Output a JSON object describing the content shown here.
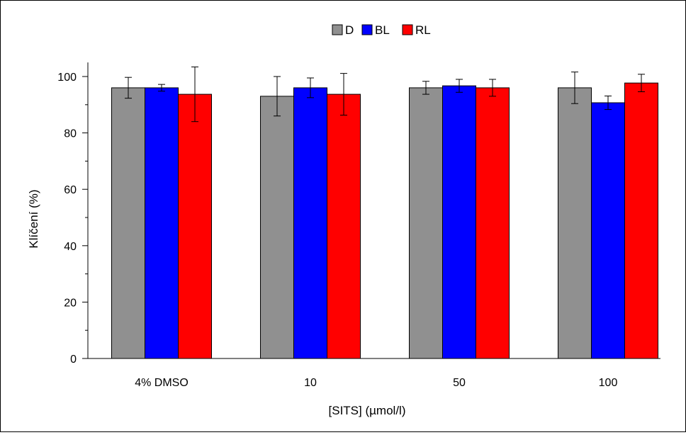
{
  "chart_data": {
    "type": "bar",
    "title": "",
    "xlabel": "[SITS] (µmol/l)",
    "ylabel": "Klíčení (%)",
    "ylim": [
      0,
      105
    ],
    "yticks": [
      0,
      20,
      40,
      60,
      80,
      100
    ],
    "categories": [
      "4% DMSO",
      "10",
      "50",
      "100"
    ],
    "legend_position": "top-center",
    "grid": false,
    "series": [
      {
        "name": "D",
        "color": "#909090",
        "values": [
          96,
          93,
          96,
          96
        ],
        "errors": [
          3.7,
          7,
          2.3,
          5.6
        ]
      },
      {
        "name": "BL",
        "color": "#0000ff",
        "values": [
          96,
          96,
          96.7,
          90.7
        ],
        "errors": [
          1.2,
          3.5,
          2.3,
          2.4
        ]
      },
      {
        "name": "RL",
        "color": "#ff0000",
        "values": [
          93.7,
          93.7,
          96,
          97.7
        ],
        "errors": [
          9.7,
          7.4,
          3.0,
          3.1
        ]
      }
    ]
  }
}
